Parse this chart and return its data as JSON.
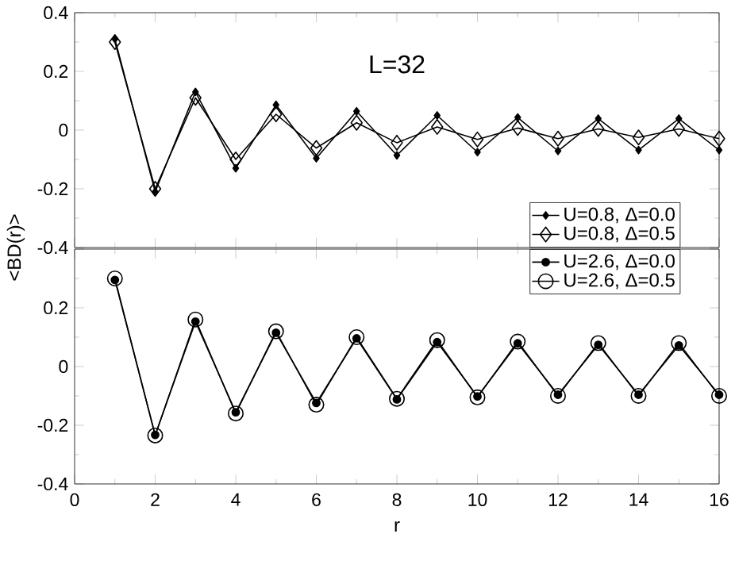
{
  "chart_data": [
    {
      "type": "line",
      "ylabel": "<BD(r)>",
      "annotations": [
        "L=32"
      ],
      "x": [
        1,
        2,
        3,
        4,
        5,
        6,
        7,
        8,
        9,
        10,
        11,
        12,
        13,
        14,
        15,
        16
      ],
      "xlim": [
        0,
        16
      ],
      "xticks": [
        0,
        2,
        4,
        6,
        8,
        10,
        12,
        14,
        16
      ],
      "ylim": [
        -0.4,
        0.4
      ],
      "yticks": [
        -0.4,
        -0.2,
        0,
        0.2,
        0.4
      ],
      "tick_labels": "y",
      "legend": "bottom right",
      "line_style": "solid",
      "series": [
        {
          "name": "U=0.8, Δ=0.0",
          "color": "#000000",
          "marker": "diamond",
          "values": [
            0.31,
            -0.21,
            0.13,
            -0.13,
            0.086,
            -0.096,
            0.064,
            -0.086,
            0.05,
            -0.075,
            0.043,
            -0.071,
            0.039,
            -0.068,
            0.039,
            -0.068
          ]
        },
        {
          "name": "U=0.8, Δ=0.5",
          "color": "#000000",
          "marker": "diamond",
          "values": [
            0.3,
            -0.2,
            0.11,
            -0.1,
            0.054,
            -0.061,
            0.025,
            -0.043,
            0.011,
            -0.032,
            0.007,
            -0.029,
            0.004,
            -0.025,
            0.004,
            -0.029
          ]
        }
      ]
    },
    {
      "type": "line",
      "xlabel": "r",
      "x": [
        1,
        2,
        3,
        4,
        5,
        6,
        7,
        8,
        9,
        10,
        11,
        12,
        13,
        14,
        15,
        16
      ],
      "xlim": [
        0,
        16
      ],
      "xticks": [
        0,
        2,
        4,
        6,
        8,
        10,
        12,
        14,
        16
      ],
      "ylim": [
        -0.4,
        0.4
      ],
      "yticks": [
        -0.4,
        -0.2,
        0,
        0.2,
        {
          "value": 0.4,
          "label": null
        }
      ],
      "legend": "top right",
      "line_style": "solid",
      "series": [
        {
          "name": "U=2.6, Δ=0.0",
          "color": "#000000",
          "marker": "circle",
          "values": [
            0.295,
            -0.233,
            0.153,
            -0.156,
            0.115,
            -0.124,
            0.096,
            -0.112,
            0.083,
            -0.102,
            0.079,
            -0.096,
            0.074,
            -0.096,
            0.072,
            -0.096
          ]
        },
        {
          "name": "U=2.6, Δ=0.5",
          "color": "#000000",
          "marker": "circle",
          "values": [
            0.3,
            -0.235,
            0.16,
            -0.16,
            0.12,
            -0.13,
            0.1,
            -0.11,
            0.09,
            -0.105,
            0.085,
            -0.1,
            0.08,
            -0.1,
            0.08,
            -0.1
          ]
        }
      ]
    }
  ]
}
